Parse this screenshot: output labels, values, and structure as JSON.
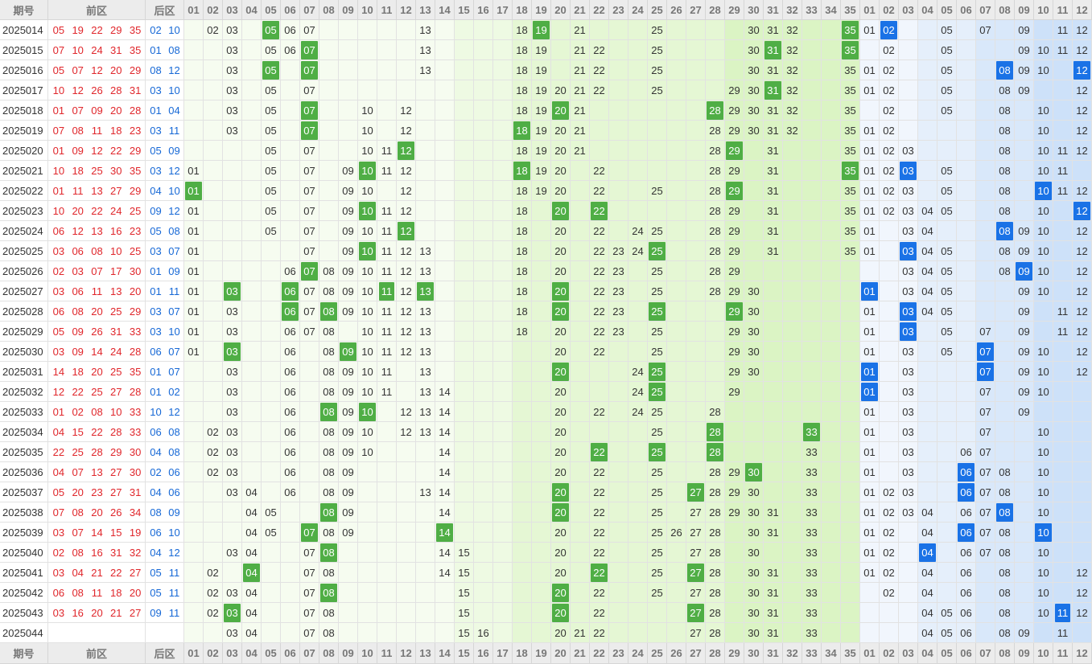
{
  "header": {
    "issue": "期号",
    "front": "前区",
    "back": "后区",
    "front_numbers": [
      "01",
      "02",
      "03",
      "04",
      "05",
      "06",
      "07",
      "08",
      "09",
      "10",
      "11",
      "12",
      "13",
      "14",
      "15",
      "16",
      "17",
      "18",
      "19",
      "20",
      "21",
      "22",
      "23",
      "24",
      "25",
      "26",
      "27",
      "28",
      "29",
      "30",
      "31",
      "32",
      "33",
      "34",
      "35"
    ],
    "back_numbers": [
      "01",
      "02",
      "03",
      "04",
      "05",
      "06",
      "07",
      "08",
      "09",
      "10",
      "11",
      "12"
    ]
  },
  "rows": [
    {
      "issue": "2025014",
      "front": [
        "05",
        "19",
        "22",
        "29",
        "35"
      ],
      "back": [
        "02",
        "10"
      ],
      "front_dist": [
        "02",
        "03",
        "05",
        "06",
        "07",
        "13",
        "18",
        "19",
        "21",
        "25",
        "30",
        "31",
        "32",
        "35"
      ],
      "back_dist": [
        "01",
        "02",
        "05",
        "07",
        "09",
        "11",
        "12"
      ]
    },
    {
      "issue": "2025015",
      "front": [
        "07",
        "10",
        "24",
        "31",
        "35"
      ],
      "back": [
        "01",
        "08"
      ],
      "front_dist": [
        "03",
        "05",
        "06",
        "07",
        "13",
        "18",
        "19",
        "21",
        "22",
        "25",
        "30",
        "31",
        "32",
        "35"
      ],
      "back_dist": [
        "02",
        "05",
        "09",
        "10",
        "11",
        "12"
      ]
    },
    {
      "issue": "2025016",
      "front": [
        "05",
        "07",
        "12",
        "20",
        "29"
      ],
      "back": [
        "08",
        "12"
      ],
      "front_dist": [
        "03",
        "05",
        "07",
        "13",
        "18",
        "19",
        "21",
        "22",
        "25",
        "30",
        "31",
        "32",
        "35"
      ],
      "back_dist": [
        "01",
        "02",
        "05",
        "08",
        "09",
        "10",
        "12"
      ]
    },
    {
      "issue": "2025017",
      "front": [
        "10",
        "12",
        "26",
        "28",
        "31"
      ],
      "back": [
        "03",
        "10"
      ],
      "front_dist": [
        "03",
        "05",
        "07",
        "18",
        "19",
        "20",
        "21",
        "22",
        "25",
        "29",
        "30",
        "31",
        "32",
        "35"
      ],
      "back_dist": [
        "01",
        "02",
        "05",
        "08",
        "09",
        "12"
      ]
    },
    {
      "issue": "2025018",
      "front": [
        "01",
        "07",
        "09",
        "20",
        "28"
      ],
      "back": [
        "01",
        "04"
      ],
      "front_dist": [
        "03",
        "05",
        "07",
        "10",
        "12",
        "18",
        "19",
        "20",
        "21",
        "28",
        "29",
        "30",
        "31",
        "32",
        "35"
      ],
      "back_dist": [
        "02",
        "05",
        "08",
        "10",
        "12"
      ]
    },
    {
      "issue": "2025019",
      "front": [
        "07",
        "08",
        "11",
        "18",
        "23"
      ],
      "back": [
        "03",
        "11"
      ],
      "front_dist": [
        "03",
        "05",
        "07",
        "10",
        "12",
        "18",
        "19",
        "20",
        "21",
        "28",
        "29",
        "30",
        "31",
        "32",
        "35"
      ],
      "back_dist": [
        "01",
        "02",
        "08",
        "10",
        "12"
      ]
    },
    {
      "issue": "2025020",
      "front": [
        "01",
        "09",
        "12",
        "22",
        "29"
      ],
      "back": [
        "05",
        "09"
      ],
      "front_dist": [
        "05",
        "07",
        "10",
        "11",
        "12",
        "18",
        "19",
        "20",
        "21",
        "28",
        "29",
        "31",
        "35"
      ],
      "back_dist": [
        "01",
        "02",
        "03",
        "08",
        "10",
        "11",
        "12"
      ]
    },
    {
      "issue": "2025021",
      "front": [
        "10",
        "18",
        "25",
        "30",
        "35"
      ],
      "back": [
        "03",
        "12"
      ],
      "front_dist": [
        "01",
        "05",
        "07",
        "09",
        "10",
        "11",
        "12",
        "18",
        "19",
        "20",
        "22",
        "28",
        "29",
        "31",
        "35"
      ],
      "back_dist": [
        "01",
        "02",
        "03",
        "05",
        "08",
        "10",
        "11"
      ]
    },
    {
      "issue": "2025022",
      "front": [
        "01",
        "11",
        "13",
        "27",
        "29"
      ],
      "back": [
        "04",
        "10"
      ],
      "front_dist": [
        "01",
        "05",
        "07",
        "09",
        "10",
        "12",
        "18",
        "19",
        "20",
        "22",
        "25",
        "28",
        "29",
        "31",
        "35"
      ],
      "back_dist": [
        "01",
        "02",
        "03",
        "05",
        "08",
        "10",
        "11",
        "12"
      ]
    },
    {
      "issue": "2025023",
      "front": [
        "10",
        "20",
        "22",
        "24",
        "25"
      ],
      "back": [
        "09",
        "12"
      ],
      "front_dist": [
        "01",
        "05",
        "07",
        "09",
        "10",
        "11",
        "12",
        "18",
        "20",
        "22",
        "28",
        "29",
        "31",
        "35"
      ],
      "back_dist": [
        "01",
        "02",
        "03",
        "04",
        "05",
        "08",
        "10",
        "12"
      ]
    },
    {
      "issue": "2025024",
      "front": [
        "06",
        "12",
        "13",
        "16",
        "23"
      ],
      "back": [
        "05",
        "08"
      ],
      "front_dist": [
        "01",
        "05",
        "07",
        "09",
        "10",
        "11",
        "12",
        "18",
        "20",
        "22",
        "24",
        "25",
        "28",
        "29",
        "31",
        "35"
      ],
      "back_dist": [
        "01",
        "03",
        "04",
        "08",
        "09",
        "10",
        "12"
      ]
    },
    {
      "issue": "2025025",
      "front": [
        "03",
        "06",
        "08",
        "10",
        "25"
      ],
      "back": [
        "03",
        "07"
      ],
      "front_dist": [
        "01",
        "07",
        "09",
        "10",
        "11",
        "12",
        "13",
        "18",
        "20",
        "22",
        "23",
        "24",
        "25",
        "28",
        "29",
        "31",
        "35"
      ],
      "back_dist": [
        "01",
        "03",
        "04",
        "05",
        "08",
        "09",
        "10",
        "12"
      ]
    },
    {
      "issue": "2025026",
      "front": [
        "02",
        "03",
        "07",
        "17",
        "30"
      ],
      "back": [
        "01",
        "09"
      ],
      "front_dist": [
        "01",
        "06",
        "07",
        "08",
        "09",
        "10",
        "11",
        "12",
        "13",
        "18",
        "20",
        "22",
        "23",
        "25",
        "28",
        "29"
      ],
      "back_dist": [
        "03",
        "04",
        "05",
        "08",
        "09",
        "10",
        "12"
      ]
    },
    {
      "issue": "2025027",
      "front": [
        "03",
        "06",
        "11",
        "13",
        "20"
      ],
      "back": [
        "01",
        "11"
      ],
      "front_dist": [
        "01",
        "03",
        "06",
        "07",
        "08",
        "09",
        "10",
        "11",
        "12",
        "13",
        "18",
        "20",
        "22",
        "23",
        "25",
        "28",
        "29",
        "30"
      ],
      "back_dist": [
        "01",
        "03",
        "04",
        "05",
        "09",
        "10",
        "12"
      ]
    },
    {
      "issue": "2025028",
      "front": [
        "06",
        "08",
        "20",
        "25",
        "29"
      ],
      "back": [
        "03",
        "07"
      ],
      "front_dist": [
        "01",
        "03",
        "06",
        "07",
        "08",
        "09",
        "10",
        "11",
        "12",
        "13",
        "18",
        "20",
        "22",
        "23",
        "25",
        "29",
        "30"
      ],
      "back_dist": [
        "01",
        "03",
        "04",
        "05",
        "09",
        "11",
        "12"
      ]
    },
    {
      "issue": "2025029",
      "front": [
        "05",
        "09",
        "26",
        "31",
        "33"
      ],
      "back": [
        "03",
        "10"
      ],
      "front_dist": [
        "01",
        "03",
        "06",
        "07",
        "08",
        "10",
        "11",
        "12",
        "13",
        "18",
        "20",
        "22",
        "23",
        "25",
        "29",
        "30"
      ],
      "back_dist": [
        "01",
        "03",
        "05",
        "07",
        "09",
        "11",
        "12"
      ]
    },
    {
      "issue": "2025030",
      "front": [
        "03",
        "09",
        "14",
        "24",
        "28"
      ],
      "back": [
        "06",
        "07"
      ],
      "front_dist": [
        "01",
        "03",
        "06",
        "08",
        "09",
        "10",
        "11",
        "12",
        "13",
        "20",
        "22",
        "25",
        "29",
        "30"
      ],
      "back_dist": [
        "01",
        "03",
        "05",
        "07",
        "09",
        "10",
        "12"
      ]
    },
    {
      "issue": "2025031",
      "front": [
        "14",
        "18",
        "20",
        "25",
        "35"
      ],
      "back": [
        "01",
        "07"
      ],
      "front_dist": [
        "03",
        "06",
        "08",
        "09",
        "10",
        "11",
        "13",
        "20",
        "24",
        "25",
        "29",
        "30"
      ],
      "back_dist": [
        "01",
        "03",
        "07",
        "09",
        "10",
        "12"
      ]
    },
    {
      "issue": "2025032",
      "front": [
        "12",
        "22",
        "25",
        "27",
        "28"
      ],
      "back": [
        "01",
        "02"
      ],
      "front_dist": [
        "03",
        "06",
        "08",
        "09",
        "10",
        "11",
        "13",
        "14",
        "20",
        "24",
        "25",
        "29"
      ],
      "back_dist": [
        "01",
        "03",
        "07",
        "09",
        "10"
      ]
    },
    {
      "issue": "2025033",
      "front": [
        "01",
        "02",
        "08",
        "10",
        "33"
      ],
      "back": [
        "10",
        "12"
      ],
      "front_dist": [
        "03",
        "06",
        "08",
        "09",
        "10",
        "12",
        "13",
        "14",
        "20",
        "22",
        "24",
        "25",
        "28"
      ],
      "back_dist": [
        "01",
        "03",
        "07",
        "09"
      ]
    },
    {
      "issue": "2025034",
      "front": [
        "04",
        "15",
        "22",
        "28",
        "33"
      ],
      "back": [
        "06",
        "08"
      ],
      "front_dist": [
        "02",
        "03",
        "06",
        "08",
        "09",
        "10",
        "12",
        "13",
        "14",
        "20",
        "25",
        "28",
        "33"
      ],
      "back_dist": [
        "01",
        "03",
        "07",
        "10"
      ]
    },
    {
      "issue": "2025035",
      "front": [
        "22",
        "25",
        "28",
        "29",
        "30"
      ],
      "back": [
        "04",
        "08"
      ],
      "front_dist": [
        "02",
        "03",
        "06",
        "08",
        "09",
        "10",
        "14",
        "20",
        "22",
        "25",
        "28",
        "33"
      ],
      "back_dist": [
        "01",
        "03",
        "06",
        "07",
        "10"
      ]
    },
    {
      "issue": "2025036",
      "front": [
        "04",
        "07",
        "13",
        "27",
        "30"
      ],
      "back": [
        "02",
        "06"
      ],
      "front_dist": [
        "02",
        "03",
        "06",
        "08",
        "09",
        "14",
        "20",
        "22",
        "25",
        "28",
        "29",
        "30",
        "33"
      ],
      "back_dist": [
        "01",
        "03",
        "06",
        "07",
        "08",
        "10"
      ]
    },
    {
      "issue": "2025037",
      "front": [
        "05",
        "20",
        "23",
        "27",
        "31"
      ],
      "back": [
        "04",
        "06"
      ],
      "front_dist": [
        "03",
        "04",
        "06",
        "08",
        "09",
        "13",
        "14",
        "20",
        "22",
        "25",
        "27",
        "28",
        "29",
        "30",
        "33"
      ],
      "back_dist": [
        "01",
        "02",
        "03",
        "06",
        "07",
        "08",
        "10"
      ]
    },
    {
      "issue": "2025038",
      "front": [
        "07",
        "08",
        "20",
        "26",
        "34"
      ],
      "back": [
        "08",
        "09"
      ],
      "front_dist": [
        "04",
        "05",
        "08",
        "09",
        "14",
        "20",
        "22",
        "25",
        "27",
        "28",
        "29",
        "30",
        "31",
        "33"
      ],
      "back_dist": [
        "01",
        "02",
        "03",
        "04",
        "06",
        "07",
        "08",
        "10"
      ]
    },
    {
      "issue": "2025039",
      "front": [
        "03",
        "07",
        "14",
        "15",
        "19"
      ],
      "back": [
        "06",
        "10"
      ],
      "front_dist": [
        "04",
        "05",
        "07",
        "08",
        "09",
        "14",
        "20",
        "22",
        "25",
        "26",
        "27",
        "28",
        "30",
        "31",
        "33"
      ],
      "back_dist": [
        "01",
        "02",
        "04",
        "06",
        "07",
        "08",
        "10"
      ]
    },
    {
      "issue": "2025040",
      "front": [
        "02",
        "08",
        "16",
        "31",
        "32"
      ],
      "back": [
        "04",
        "12"
      ],
      "front_dist": [
        "03",
        "04",
        "07",
        "08",
        "14",
        "15",
        "20",
        "22",
        "25",
        "27",
        "28",
        "30",
        "33"
      ],
      "back_dist": [
        "01",
        "02",
        "04",
        "06",
        "07",
        "08",
        "10"
      ]
    },
    {
      "issue": "2025041",
      "front": [
        "03",
        "04",
        "21",
        "22",
        "27"
      ],
      "back": [
        "05",
        "11"
      ],
      "front_dist": [
        "02",
        "04",
        "07",
        "08",
        "14",
        "15",
        "20",
        "22",
        "25",
        "27",
        "28",
        "30",
        "31",
        "33"
      ],
      "back_dist": [
        "01",
        "02",
        "04",
        "06",
        "08",
        "10",
        "12"
      ]
    },
    {
      "issue": "2025042",
      "front": [
        "06",
        "08",
        "11",
        "18",
        "20"
      ],
      "back": [
        "05",
        "11"
      ],
      "front_dist": [
        "02",
        "03",
        "04",
        "07",
        "08",
        "15",
        "20",
        "22",
        "25",
        "27",
        "28",
        "30",
        "31",
        "33"
      ],
      "back_dist": [
        "02",
        "04",
        "06",
        "08",
        "10",
        "12"
      ]
    },
    {
      "issue": "2025043",
      "front": [
        "03",
        "16",
        "20",
        "21",
        "27"
      ],
      "back": [
        "09",
        "11"
      ],
      "front_dist": [
        "02",
        "03",
        "04",
        "07",
        "08",
        "15",
        "20",
        "22",
        "27",
        "28",
        "30",
        "31",
        "33"
      ],
      "back_dist": [
        "04",
        "05",
        "06",
        "08",
        "10",
        "11",
        "12"
      ]
    },
    {
      "issue": "2025044",
      "front": null,
      "back": null,
      "front_dist": [
        "03",
        "04",
        "07",
        "08",
        "15",
        "16",
        "20",
        "21",
        "22",
        "27",
        "28",
        "30",
        "31",
        "33"
      ],
      "back_dist": [
        "04",
        "05",
        "06",
        "08",
        "09",
        "11"
      ]
    }
  ]
}
